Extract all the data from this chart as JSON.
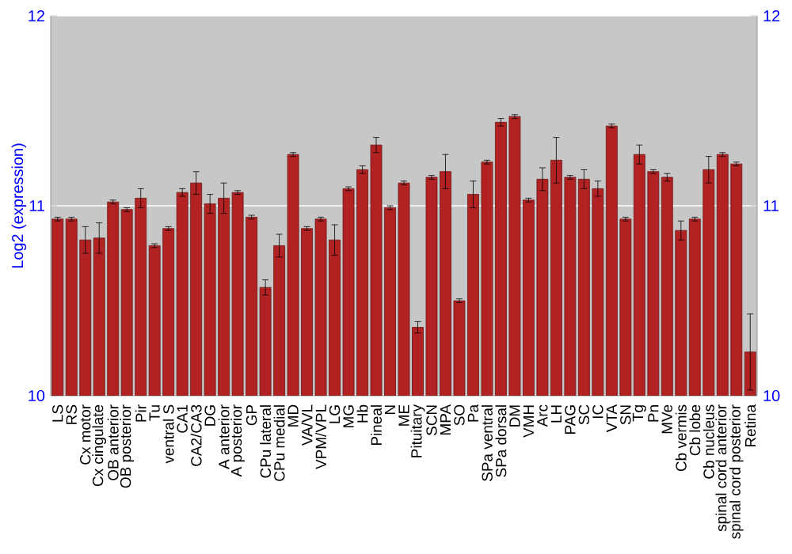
{
  "chart_data": {
    "type": "bar",
    "ylabel": "Log2 (expression)",
    "categories": [
      "LS",
      "RS",
      "Cx motor",
      "Cx cingulate",
      "OB anterior",
      "OB posterior",
      "Pir",
      "Tu",
      "ventral S",
      "CA1",
      "CA2/CA3",
      "DG",
      "A anterior",
      "A posterior",
      "GP",
      "CPu lateral",
      "CPu medial",
      "MD",
      "VA/VL",
      "VPM/VPL",
      "LG",
      "MG",
      "Hb",
      "Pineal",
      "N",
      "ME",
      "Pituitary",
      "SCN",
      "MPA",
      "SO",
      "Pa",
      "SPa ventral",
      "SPa dorsal",
      "DM",
      "VMH",
      "Arc",
      "LH",
      "PAG",
      "SC",
      "IC",
      "VTA",
      "SN",
      "Tg",
      "Pn",
      "MVe",
      "Cb vermis",
      "Cb lobe",
      "Cb nucleus",
      "spinal cord anterior",
      "spinal cord posterior",
      "Retina"
    ],
    "values": [
      10.93,
      10.93,
      10.82,
      10.83,
      11.02,
      10.98,
      11.04,
      10.79,
      10.88,
      11.07,
      11.12,
      11.01,
      11.04,
      11.07,
      10.94,
      10.57,
      10.79,
      11.27,
      10.88,
      10.93,
      10.82,
      11.09,
      11.19,
      11.32,
      10.99,
      11.12,
      10.36,
      11.15,
      11.18,
      10.5,
      11.06,
      11.23,
      11.44,
      11.47,
      11.03,
      11.14,
      11.24,
      11.15,
      11.14,
      11.09,
      11.42,
      10.93,
      11.27,
      11.18,
      11.15,
      10.87,
      10.93,
      11.19,
      11.27,
      11.22,
      10.23
    ],
    "errors": [
      0.01,
      0.01,
      0.07,
      0.08,
      0.01,
      0.01,
      0.05,
      0.01,
      0.01,
      0.02,
      0.06,
      0.05,
      0.08,
      0.01,
      0.01,
      0.04,
      0.06,
      0.01,
      0.01,
      0.01,
      0.08,
      0.01,
      0.02,
      0.04,
      0.01,
      0.01,
      0.03,
      0.01,
      0.09,
      0.01,
      0.07,
      0.01,
      0.02,
      0.01,
      0.01,
      0.06,
      0.12,
      0.01,
      0.05,
      0.04,
      0.01,
      0.01,
      0.05,
      0.01,
      0.02,
      0.05,
      0.01,
      0.07,
      0.01,
      0.01,
      0.2
    ],
    "color": "#b22222",
    "ylim": [
      10,
      12
    ],
    "yticks": [
      10,
      11,
      12
    ],
    "y2lim": [
      10,
      12
    ],
    "y2ticks": [
      10,
      11,
      12
    ],
    "grid": "y"
  }
}
